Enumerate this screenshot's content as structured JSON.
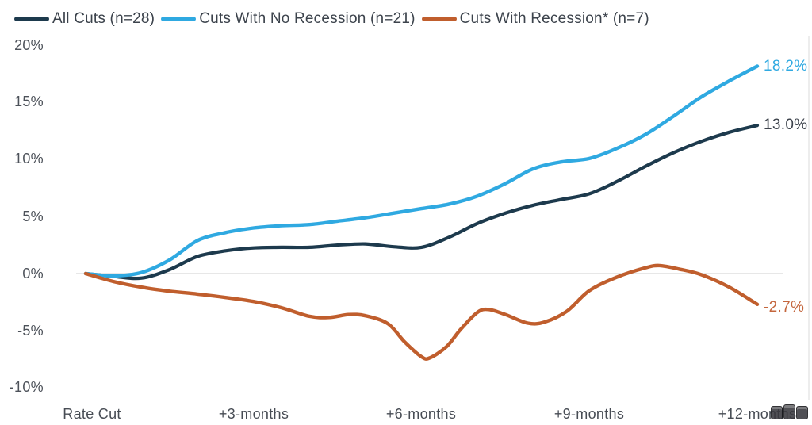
{
  "chart_data": {
    "type": "line",
    "title": "",
    "xlabel": "",
    "ylabel": "",
    "ylim": [
      -10,
      20
    ],
    "y_tick_values": [
      20,
      15,
      10,
      5,
      0,
      -5,
      -10
    ],
    "y_tick_labels": [
      "20%",
      "15%",
      "10%",
      "5%",
      "0%",
      "-5%",
      "-10%"
    ],
    "x_tick_months": [
      0,
      3,
      6,
      9,
      12
    ],
    "x_tick_labels": [
      "Rate Cut",
      "+3-months",
      "+6-months",
      "+9-months",
      "+12-months"
    ],
    "grid": "zero-line-only",
    "legend_position": "top-left",
    "x_unit": "months after rate cut",
    "series": [
      {
        "name": "All Cuts (n=28)",
        "color": "#1d3a4d",
        "end_label": "13.0%",
        "end_label_color": "#3c424b",
        "end_value": 13.0,
        "points": [
          [
            0,
            0
          ],
          [
            0.5,
            -0.25
          ],
          [
            1,
            -0.4
          ],
          [
            1.5,
            0.35
          ],
          [
            2,
            1.5
          ],
          [
            2.5,
            2.0
          ],
          [
            3,
            2.25
          ],
          [
            3.5,
            2.3
          ],
          [
            4,
            2.3
          ],
          [
            4.5,
            2.5
          ],
          [
            5,
            2.6
          ],
          [
            5.5,
            2.35
          ],
          [
            6,
            2.3
          ],
          [
            6.5,
            3.2
          ],
          [
            7,
            4.4
          ],
          [
            7.5,
            5.3
          ],
          [
            8,
            6.0
          ],
          [
            8.5,
            6.5
          ],
          [
            9,
            7.0
          ],
          [
            9.5,
            8.1
          ],
          [
            10,
            9.4
          ],
          [
            10.5,
            10.6
          ],
          [
            11,
            11.6
          ],
          [
            11.5,
            12.4
          ],
          [
            12,
            13.0
          ]
        ]
      },
      {
        "name": "Cuts With No Recession (n=21)",
        "color": "#2fa9e1",
        "end_label": "18.2%",
        "end_label_color": "#2fa9e1",
        "end_value": 18.2,
        "points": [
          [
            0,
            0
          ],
          [
            0.5,
            -0.2
          ],
          [
            1,
            0.1
          ],
          [
            1.5,
            1.2
          ],
          [
            2,
            2.9
          ],
          [
            2.5,
            3.6
          ],
          [
            3,
            4.0
          ],
          [
            3.5,
            4.2
          ],
          [
            4,
            4.3
          ],
          [
            4.5,
            4.6
          ],
          [
            5,
            4.9
          ],
          [
            5.5,
            5.3
          ],
          [
            6,
            5.7
          ],
          [
            6.5,
            6.1
          ],
          [
            7,
            6.8
          ],
          [
            7.5,
            7.9
          ],
          [
            8,
            9.2
          ],
          [
            8.5,
            9.8
          ],
          [
            9,
            10.1
          ],
          [
            9.5,
            11.0
          ],
          [
            10,
            12.2
          ],
          [
            10.5,
            13.8
          ],
          [
            11,
            15.5
          ],
          [
            11.5,
            16.9
          ],
          [
            12,
            18.2
          ]
        ]
      },
      {
        "name": "Cuts With Recession* (n=7)",
        "color": "#c05e2d",
        "end_label": "-2.7%",
        "end_label_color": "#c4663d",
        "end_value": -2.7,
        "points": [
          [
            0,
            0
          ],
          [
            0.5,
            -0.7
          ],
          [
            1,
            -1.2
          ],
          [
            1.5,
            -1.55
          ],
          [
            2,
            -1.8
          ],
          [
            2.5,
            -2.1
          ],
          [
            3,
            -2.45
          ],
          [
            3.5,
            -3.0
          ],
          [
            4,
            -3.75
          ],
          [
            4.35,
            -3.85
          ],
          [
            4.7,
            -3.6
          ],
          [
            5,
            -3.7
          ],
          [
            5.4,
            -4.4
          ],
          [
            5.7,
            -6.0
          ],
          [
            6,
            -7.3
          ],
          [
            6.15,
            -7.4
          ],
          [
            6.45,
            -6.4
          ],
          [
            6.7,
            -4.9
          ],
          [
            7,
            -3.4
          ],
          [
            7.2,
            -3.15
          ],
          [
            7.5,
            -3.6
          ],
          [
            7.9,
            -4.35
          ],
          [
            8.2,
            -4.25
          ],
          [
            8.6,
            -3.3
          ],
          [
            9,
            -1.5
          ],
          [
            9.5,
            -0.3
          ],
          [
            10,
            0.5
          ],
          [
            10.25,
            0.7
          ],
          [
            10.6,
            0.4
          ],
          [
            11,
            -0.1
          ],
          [
            11.5,
            -1.2
          ],
          [
            12,
            -2.7
          ]
        ]
      }
    ]
  }
}
